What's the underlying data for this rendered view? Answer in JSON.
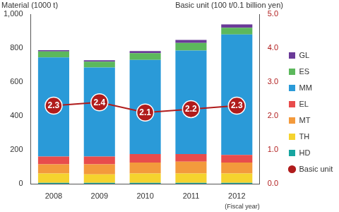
{
  "chart_data": {
    "type": "bar",
    "stacked": true,
    "y_label": "Material (1000 t)",
    "y2_label": "Basic unit (100 t/0.1 billion yen)",
    "x_label": "(Fiscal year)",
    "categories": [
      "2008",
      "2009",
      "2010",
      "2011",
      "2012"
    ],
    "ylim": [
      0,
      1000
    ],
    "yticks": [
      0,
      200,
      400,
      600,
      800,
      {
        "value": 1000,
        "label": "1,000"
      }
    ],
    "y2lim": [
      0,
      5
    ],
    "y2ticks": [
      {
        "value": 0,
        "label": "0.0"
      },
      {
        "value": 1,
        "label": "1.0"
      },
      {
        "value": 2,
        "label": "2.0"
      },
      {
        "value": 3,
        "label": "3.0"
      },
      {
        "value": 4,
        "label": "4.0"
      },
      {
        "value": 5,
        "label": "5.0"
      }
    ],
    "grid": false,
    "legend": "right",
    "series": [
      {
        "name": "HD",
        "color": "#17a5a0",
        "values": [
          5,
          5,
          5,
          5,
          5
        ]
      },
      {
        "name": "TH",
        "color": "#f5d32e",
        "values": [
          55,
          50,
          55,
          55,
          55
        ]
      },
      {
        "name": "MT",
        "color": "#f39a3c",
        "values": [
          55,
          60,
          65,
          70,
          65
        ]
      },
      {
        "name": "EL",
        "color": "#e84c4c",
        "values": [
          45,
          45,
          50,
          45,
          45
        ]
      },
      {
        "name": "MM",
        "color": "#2a9ad8",
        "values": [
          585,
          525,
          555,
          610,
          710
        ]
      },
      {
        "name": "ES",
        "color": "#5cb85c",
        "values": [
          35,
          35,
          40,
          45,
          40
        ]
      },
      {
        "name": "GL",
        "color": "#6a3a98",
        "values": [
          8,
          8,
          12,
          18,
          20
        ]
      },
      {
        "name": "Basic unit",
        "type": "line",
        "axis": "y2",
        "color": "#b01c1c",
        "marker": "circle",
        "data_labels": true,
        "values": [
          2.3,
          2.4,
          2.1,
          2.2,
          2.3
        ]
      }
    ]
  }
}
